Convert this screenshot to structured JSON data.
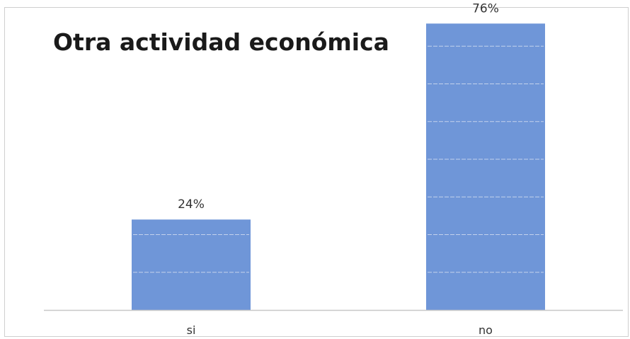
{
  "chart_data": {
    "type": "bar",
    "title": "Otra actividad económica",
    "categories": [
      "si",
      "no"
    ],
    "values": [
      24,
      76
    ],
    "data_labels": [
      "24%",
      "76%"
    ],
    "unit": "%",
    "ylim": [
      0,
      80
    ],
    "grid": true,
    "legend": "none",
    "bar_color": "#6f96d8",
    "grid_color": "#d9e2f1",
    "axis_color": "#c8c8c8"
  }
}
